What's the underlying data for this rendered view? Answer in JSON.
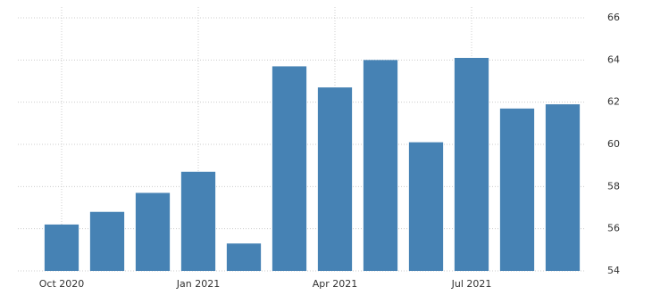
{
  "chart_data": {
    "type": "bar",
    "categories": [
      "Oct 2020",
      null,
      null,
      "Jan 2021",
      null,
      null,
      "Apr 2021",
      null,
      null,
      "Jul 2021",
      null,
      null
    ],
    "values": [
      56.2,
      56.8,
      57.7,
      58.7,
      55.3,
      63.7,
      62.7,
      64.0,
      60.1,
      64.1,
      61.7,
      61.9
    ],
    "color": "#4682b4",
    "ylim": [
      54,
      66
    ],
    "yticks": [
      54,
      56,
      58,
      60,
      62,
      64,
      66
    ],
    "grid": true
  }
}
